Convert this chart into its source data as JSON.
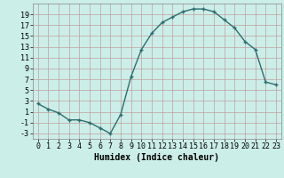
{
  "x": [
    0,
    1,
    2,
    3,
    4,
    5,
    6,
    7,
    8,
    9,
    10,
    11,
    12,
    13,
    14,
    15,
    16,
    17,
    18,
    19,
    20,
    21,
    22,
    23
  ],
  "y": [
    2.5,
    1.5,
    0.8,
    -0.5,
    -0.5,
    -1.0,
    -2.0,
    -3.0,
    0.5,
    7.5,
    12.5,
    15.5,
    17.5,
    18.5,
    19.5,
    20.0,
    20.0,
    19.5,
    18.0,
    16.5,
    14.0,
    12.5,
    6.5,
    6.0
  ],
  "line_color": "#2d6e6e",
  "bg_color": "#cceee8",
  "grid_color": "#c0a0a0",
  "xlabel": "Humidex (Indice chaleur)",
  "xlim": [
    -0.5,
    23.5
  ],
  "ylim": [
    -4,
    21
  ],
  "yticks": [
    -3,
    -1,
    1,
    3,
    5,
    7,
    9,
    11,
    13,
    15,
    17,
    19
  ],
  "xticks": [
    0,
    1,
    2,
    3,
    4,
    5,
    6,
    7,
    8,
    9,
    10,
    11,
    12,
    13,
    14,
    15,
    16,
    17,
    18,
    19,
    20,
    21,
    22,
    23
  ],
  "marker": "+",
  "marker_size": 3,
  "line_width": 1.0,
  "xlabel_fontsize": 7,
  "tick_fontsize": 6
}
